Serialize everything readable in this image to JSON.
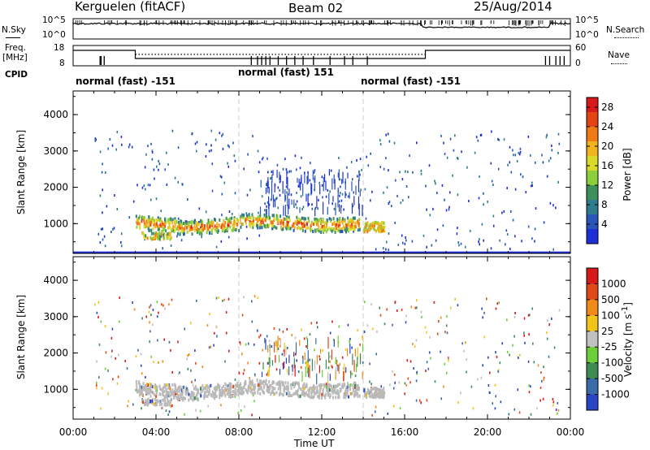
{
  "header": {
    "station": "Kerguelen (fitACF)",
    "beam": "Beam 02",
    "date": "25/Aug/2014"
  },
  "left_labels": {
    "nsky": "N.Sky",
    "freq": "Freq.",
    "mhz": "[MHz]",
    "cpid": "CPID"
  },
  "right_labels": {
    "nsearch": "N.Search",
    "nave": "Nave"
  },
  "nsky_axis": {
    "top": "10^5",
    "bottom": "10^0"
  },
  "freq_axis": {
    "top": "18",
    "bottom": "8"
  },
  "nave_axis": {
    "top": "60",
    "bottom": "0"
  },
  "cpid_segments": [
    {
      "label": "normal (fast) -151",
      "start_hour": 0
    },
    {
      "label": "normal (fast) 151",
      "start_hour": 8
    },
    {
      "label": "normal (fast) -151",
      "start_hour": 14
    }
  ],
  "chart_data": [
    {
      "type": "heatmap",
      "title": "",
      "ylabel": "Slant Range [km]",
      "xlim": [
        "00:00",
        "24:00"
      ],
      "ylim": [
        180,
        4650
      ],
      "yticks": [
        1000,
        2000,
        3000,
        4000
      ],
      "colorbar": {
        "label": "Power [dB]",
        "ticks": [
          4,
          8,
          12,
          16,
          20,
          24,
          28
        ],
        "range": [
          0,
          30
        ]
      },
      "features": [
        {
          "hours": [
            3.0,
            13.8
          ],
          "range_km": [
            850,
            1300
          ],
          "value": "18-28 dB"
        },
        {
          "hours": [
            14.0,
            15.0
          ],
          "range_km": [
            800,
            1100
          ],
          "value": "16-24 dB"
        }
      ]
    },
    {
      "type": "heatmap",
      "title": "",
      "ylabel": "Slant Range [km]",
      "xlabel": "Time UT",
      "xlim": [
        "00:00",
        "24:00"
      ],
      "xticks": [
        "00:00",
        "04:00",
        "08:00",
        "12:00",
        "16:00",
        "20:00",
        "00:00"
      ],
      "ylim": [
        180,
        4650
      ],
      "yticks": [
        1000,
        2000,
        3000,
        4000
      ],
      "colorbar": {
        "label": "Velocity [m s^-1]",
        "ticks": [
          1000,
          500,
          100,
          25,
          -25,
          -100,
          -500,
          -1000
        ]
      },
      "features": [
        {
          "hours": [
            3.0,
            14.5
          ],
          "range_km": [
            850,
            1300
          ],
          "value": "-25 to 25 m/s (ground scatter)"
        }
      ]
    }
  ],
  "colors": {
    "power_scale": [
      "#1e2fd6",
      "#2a55b8",
      "#2f7a8c",
      "#3f8f5a",
      "#8bcf3a",
      "#d9d92a",
      "#f2b41e",
      "#f07a14",
      "#e34416",
      "#d61a1a"
    ],
    "velocity_scale": [
      "#2a44c6",
      "#3a6aa8",
      "#3f8a55",
      "#6ccf3a",
      "#c0c0c0",
      "#f0c41a",
      "#f08a1a",
      "#e04a18",
      "#d61a1a"
    ],
    "ground_scatter": "#b9b9b9",
    "dashed_line": "#cccccc"
  }
}
